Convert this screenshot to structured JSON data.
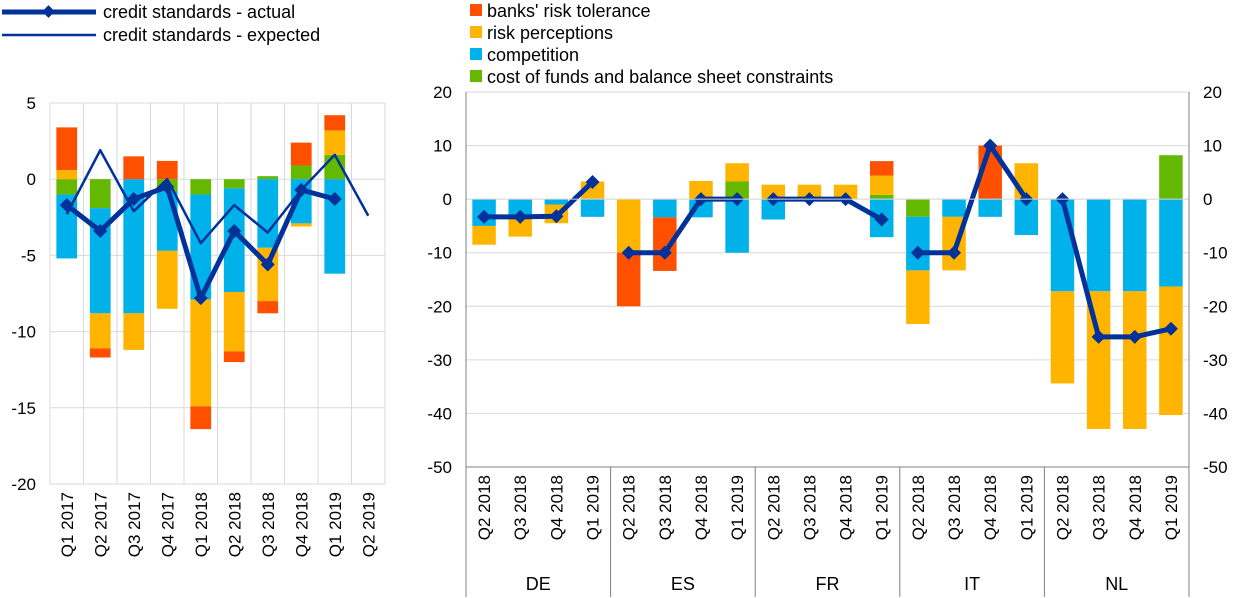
{
  "colors": {
    "banks_risk_tolerance": "#ff5000",
    "risk_perceptions": "#ffb400",
    "competition": "#00b1ea",
    "cost_of_funds": "#65b800",
    "actual": "#003299",
    "expected": "#003299",
    "grid": "#d9d9d9",
    "axis": "#000000"
  },
  "legend": {
    "line_items": [
      {
        "key": "actual",
        "label": "credit standards - actual"
      },
      {
        "key": "expected",
        "label": "credit standards - expected"
      }
    ],
    "bar_items": [
      {
        "key": "banks_risk_tolerance",
        "label": "banks' risk tolerance"
      },
      {
        "key": "risk_perceptions",
        "label": "risk perceptions"
      },
      {
        "key": "competition",
        "label": "competition"
      },
      {
        "key": "cost_of_funds",
        "label": "cost of funds and balance sheet constraints"
      }
    ]
  },
  "chart_data": [
    {
      "type": "bar",
      "stacked": true,
      "y_ticks": [
        "5",
        "0",
        "-5",
        "-10",
        "-15",
        "-20"
      ],
      "ylim": [
        -20,
        5
      ],
      "categories": [
        "Q1 2017",
        "Q2 2017",
        "Q3 2017",
        "Q4 2017",
        "Q1 2018",
        "Q2 2018",
        "Q3 2018",
        "Q4 2018",
        "Q1 2019",
        "Q2 2019"
      ],
      "series": [
        {
          "key": "banks_risk_tolerance",
          "name": "banks' risk tolerance",
          "values": [
            2.8,
            -0.6,
            1.5,
            1.2,
            -1.5,
            -0.7,
            -0.8,
            1.5,
            1.0,
            null
          ]
        },
        {
          "key": "risk_perceptions",
          "name": "risk perceptions",
          "values": [
            0.6,
            -2.3,
            -2.4,
            -3.8,
            -7.0,
            -3.9,
            -3.5,
            -0.2,
            1.6,
            null
          ]
        },
        {
          "key": "competition",
          "name": "competition",
          "values": [
            -4.2,
            -6.9,
            -8.8,
            -3.9,
            -6.9,
            -6.8,
            -4.5,
            -2.9,
            -6.2,
            null
          ]
        },
        {
          "key": "cost_of_funds",
          "name": "cost of funds and balance sheet constraints",
          "values": [
            -1.0,
            -1.9,
            0.0,
            -0.8,
            -1.0,
            -0.6,
            0.2,
            0.9,
            1.6,
            null
          ]
        }
      ],
      "lines": [
        {
          "key": "actual",
          "name": "credit standards - actual",
          "values": [
            -1.7,
            -3.4,
            -1.3,
            -0.5,
            -7.8,
            -3.4,
            -5.6,
            -0.7,
            -1.3,
            null
          ]
        },
        {
          "key": "expected",
          "name": "credit standards - expected",
          "values": [
            -2.3,
            1.9,
            -2.1,
            0.0,
            -4.2,
            -1.7,
            -3.5,
            -0.7,
            1.6,
            -2.4
          ]
        }
      ]
    },
    {
      "type": "bar",
      "stacked": true,
      "y_ticks": [
        "20",
        "10",
        "0",
        "-10",
        "-20",
        "-30",
        "-40",
        "-50"
      ],
      "ylim": [
        -50,
        20
      ],
      "groups": [
        {
          "label": "DE",
          "categories": [
            "Q2 2018",
            "Q3 2018",
            "Q4 2018",
            "Q1 2019"
          ],
          "banks_risk_tolerance": [
            0,
            0,
            0,
            0
          ],
          "risk_perceptions": [
            -3.5,
            -3.5,
            -3.5,
            3.3
          ],
          "competition": [
            -5.0,
            -3.5,
            -1.0,
            -3.3
          ],
          "cost_of_funds": [
            0,
            0,
            0,
            0
          ],
          "actual": [
            -3.3,
            -3.3,
            -3.2,
            3.2
          ]
        },
        {
          "label": "ES",
          "categories": [
            "Q2 2018",
            "Q3 2018",
            "Q4 2018",
            "Q1 2019"
          ],
          "banks_risk_tolerance": [
            -10,
            -10,
            0,
            0
          ],
          "risk_perceptions": [
            -10,
            0,
            3.4,
            3.4
          ],
          "competition": [
            0,
            -3.4,
            -3.4,
            -10
          ],
          "cost_of_funds": [
            0,
            0,
            0,
            3.3
          ],
          "actual": [
            -10,
            -10,
            0,
            0
          ]
        },
        {
          "label": "FR",
          "categories": [
            "Q2 2018",
            "Q3 2018",
            "Q4 2018",
            "Q1 2019"
          ],
          "banks_risk_tolerance": [
            0,
            0,
            0,
            2.7
          ],
          "risk_perceptions": [
            2.7,
            2.7,
            2.7,
            3.6
          ],
          "competition": [
            -3.8,
            0,
            0,
            -7.1
          ],
          "cost_of_funds": [
            0,
            0,
            0,
            0.8
          ],
          "actual": [
            0,
            0,
            0,
            -3.8
          ]
        },
        {
          "label": "IT",
          "categories": [
            "Q2 2018",
            "Q3 2018",
            "Q4 2018",
            "Q1 2019"
          ],
          "banks_risk_tolerance": [
            0,
            0,
            10,
            0
          ],
          "risk_perceptions": [
            -10,
            -10,
            0,
            6.7
          ],
          "competition": [
            -10,
            -3.3,
            -3.3,
            -6.7
          ],
          "cost_of_funds": [
            -3.3,
            0,
            0,
            0
          ],
          "actual": [
            -10,
            -10,
            10,
            0
          ]
        },
        {
          "label": "NL",
          "categories": [
            "Q2 2018",
            "Q3 2018",
            "Q4 2018",
            "Q1 2019"
          ],
          "banks_risk_tolerance": [
            0,
            0,
            0,
            0
          ],
          "risk_perceptions": [
            -17.2,
            -25.7,
            -25.7,
            -24.0
          ],
          "competition": [
            -17.2,
            -17.2,
            -17.2,
            -16.3
          ],
          "cost_of_funds": [
            0,
            0,
            0,
            8.2
          ],
          "actual": [
            0,
            -25.7,
            -25.7,
            -24.2
          ]
        }
      ]
    }
  ]
}
